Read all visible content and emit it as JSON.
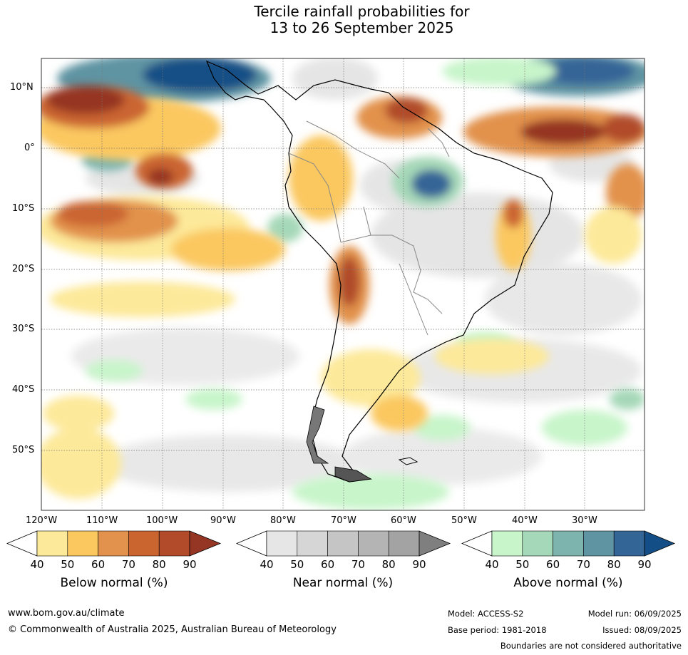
{
  "title": {
    "line1": "Tercile rainfall probabilities for",
    "line2": "13 to 26 September 2025"
  },
  "map": {
    "lat_labels": [
      "10°N",
      "0°",
      "10°S",
      "20°S",
      "30°S",
      "40°S",
      "50°S"
    ],
    "lon_labels": [
      "120°W",
      "110°W",
      "100°W",
      "90°W",
      "80°W",
      "70°W",
      "60°W",
      "50°W",
      "40°W",
      "30°W"
    ]
  },
  "legend": {
    "below": {
      "title": "Below normal (%)",
      "ticks": [
        "40",
        "50",
        "60",
        "70",
        "80",
        "90"
      ],
      "colors": [
        "#fde99a",
        "#fbc860",
        "#e2924c",
        "#cb6530",
        "#b14b2a",
        "#953524"
      ]
    },
    "near": {
      "title": "Near normal (%)",
      "ticks": [
        "40",
        "50",
        "60",
        "70",
        "80",
        "90"
      ],
      "colors": [
        "#e6e6e6",
        "#d6d6d6",
        "#c5c5c5",
        "#b4b4b4",
        "#a3a3a3",
        "#7f7f7f"
      ]
    },
    "above": {
      "title": "Above normal (%)",
      "ticks": [
        "40",
        "50",
        "60",
        "70",
        "80",
        "90"
      ],
      "colors": [
        "#c8f5ca",
        "#a5d8b8",
        "#7db4ad",
        "#5f94a3",
        "#346597",
        "#134f86"
      ]
    }
  },
  "footer": {
    "url": "www.bom.gov.au/climate",
    "copyright": "© Commonwealth of Australia 2025, Australian Bureau of Meteorology",
    "model": "Model: ACCESS-S2",
    "model_run": "Model run: 06/09/2025",
    "base_period": "Base period: 1981-2018",
    "issued": "Issued: 08/09/2025",
    "disclaimer": "Boundaries are not considered authoritative"
  }
}
